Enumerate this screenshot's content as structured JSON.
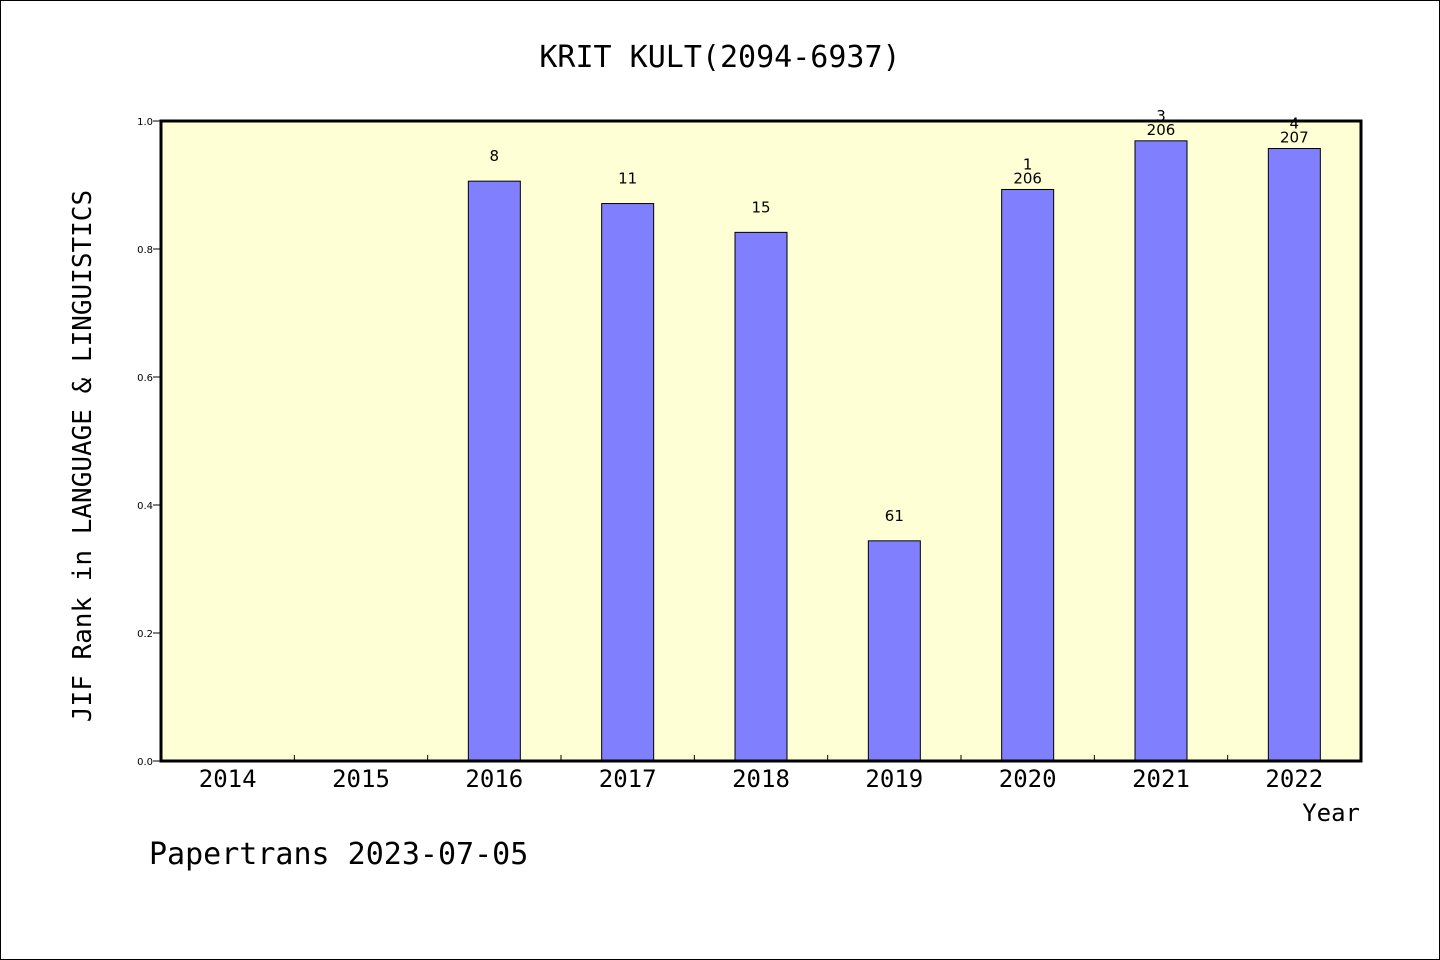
{
  "chart_data": {
    "type": "bar",
    "title": "KRIT KULT(2094-6937)",
    "ylabel": "JIF Rank in LANGUAGE & LINGUISTICS",
    "xlabel": "Year",
    "ylim": [
      0.0,
      1.0
    ],
    "yticks": [
      "0.0",
      "0.2",
      "0.4",
      "0.6",
      "0.8",
      "1.0"
    ],
    "grid": false,
    "plot_background": "#ffffd5",
    "bar_color": "#8080ff",
    "categories": [
      "2014",
      "2015",
      "2016",
      "2017",
      "2018",
      "2019",
      "2020",
      "2021",
      "2022"
    ],
    "values": [
      null,
      null,
      0.906,
      0.871,
      0.826,
      0.344,
      0.893,
      0.969,
      0.957
    ],
    "rank_labels": [
      "",
      "",
      "8",
      "11",
      "15",
      "61",
      "1",
      "3",
      "4"
    ],
    "total_labels": [
      "",
      "",
      "",
      "",
      "",
      "",
      "206",
      "206",
      "207"
    ]
  },
  "footer": "Papertrans 2023-07-05"
}
